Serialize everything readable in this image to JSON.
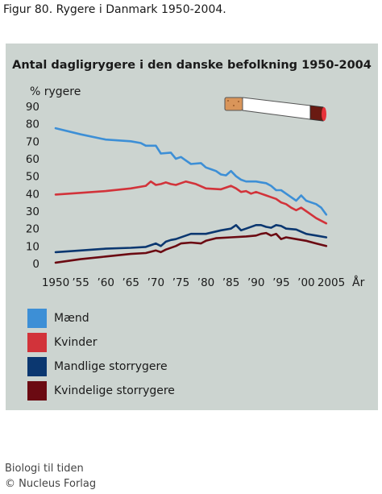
{
  "figure_caption": "Figur 80. Rygere i Danmark 1950-2004.",
  "footer": {
    "line1": "Biologi til tiden",
    "line2": "© Nucleus Forlag"
  },
  "colors": {
    "panel": "#ccd4d0",
    "maend": "#3d8fd6",
    "kvinder": "#d2333a",
    "mandlige": "#0b3770",
    "kvindelige": "#6b0a12"
  },
  "icon": "cigarette-icon",
  "chart_data": {
    "type": "line",
    "title": "Antal dagligrygere i den danske befolkning 1950-2004",
    "ylabel": "% rygere",
    "xlabel": "År",
    "ylim": [
      0,
      90
    ],
    "xlim": [
      1950,
      2005
    ],
    "grid": false,
    "legend": "bottom",
    "yticks": [
      "0",
      "10",
      "20",
      "30",
      "40",
      "50",
      "60",
      "70",
      "80",
      "90"
    ],
    "xticks": [
      {
        "value": 1950,
        "label": "1950"
      },
      {
        "value": 1955,
        "label": "’55"
      },
      {
        "value": 1960,
        "label": "’60"
      },
      {
        "value": 1965,
        "label": "’65"
      },
      {
        "value": 1970,
        "label": "’70"
      },
      {
        "value": 1975,
        "label": "’75"
      },
      {
        "value": 1980,
        "label": "’80"
      },
      {
        "value": 1985,
        "label": "’85"
      },
      {
        "value": 1990,
        "label": "’90"
      },
      {
        "value": 1995,
        "label": "’95"
      },
      {
        "value": 2000,
        "label": "’00"
      },
      {
        "value": 2005,
        "label": "2005"
      }
    ],
    "series": [
      {
        "name": "Mænd",
        "color": "#3d8fd6",
        "points": [
          [
            1950,
            77.5
          ],
          [
            1955,
            74
          ],
          [
            1960,
            71
          ],
          [
            1965,
            70
          ],
          [
            1967,
            69
          ],
          [
            1968,
            67.5
          ],
          [
            1970,
            67.5
          ],
          [
            1971,
            63
          ],
          [
            1973,
            63.5
          ],
          [
            1974,
            60
          ],
          [
            1975,
            61
          ],
          [
            1976,
            59
          ],
          [
            1977,
            57
          ],
          [
            1979,
            57.5
          ],
          [
            1980,
            55
          ],
          [
            1981,
            54
          ],
          [
            1982,
            53
          ],
          [
            1983,
            51
          ],
          [
            1984,
            50.5
          ],
          [
            1985,
            53
          ],
          [
            1986,
            50
          ],
          [
            1987,
            48
          ],
          [
            1988,
            47
          ],
          [
            1990,
            47
          ],
          [
            1991,
            46.5
          ],
          [
            1992,
            46
          ],
          [
            1993,
            44.5
          ],
          [
            1994,
            42
          ],
          [
            1995,
            42
          ],
          [
            1996,
            40
          ],
          [
            1997,
            38
          ],
          [
            1998,
            36
          ],
          [
            1999,
            39
          ],
          [
            2000,
            36
          ],
          [
            2001,
            35
          ],
          [
            2002,
            34
          ],
          [
            2003,
            32
          ],
          [
            2004,
            28
          ]
        ]
      },
      {
        "name": "Kvinder",
        "color": "#d2333a",
        "points": [
          [
            1950,
            39.5
          ],
          [
            1955,
            40.5
          ],
          [
            1960,
            41.5
          ],
          [
            1965,
            43
          ],
          [
            1968,
            44.5
          ],
          [
            1969,
            47
          ],
          [
            1970,
            45
          ],
          [
            1971,
            45.5
          ],
          [
            1972,
            46.5
          ],
          [
            1973,
            45.5
          ],
          [
            1974,
            45
          ],
          [
            1975,
            46
          ],
          [
            1976,
            47
          ],
          [
            1978,
            45.5
          ],
          [
            1980,
            43
          ],
          [
            1983,
            42.5
          ],
          [
            1985,
            44.5
          ],
          [
            1986,
            43
          ],
          [
            1987,
            41
          ],
          [
            1988,
            41.5
          ],
          [
            1989,
            40
          ],
          [
            1990,
            41
          ],
          [
            1991,
            40
          ],
          [
            1992,
            39
          ],
          [
            1993,
            38
          ],
          [
            1994,
            37
          ],
          [
            1995,
            35
          ],
          [
            1996,
            34
          ],
          [
            1997,
            32
          ],
          [
            1998,
            30.5
          ],
          [
            1999,
            32
          ],
          [
            2000,
            30
          ],
          [
            2001,
            28
          ],
          [
            2002,
            26
          ],
          [
            2004,
            23
          ]
        ]
      },
      {
        "name": "Mandlige storrygere",
        "color": "#0b3770",
        "points": [
          [
            1950,
            6.5
          ],
          [
            1955,
            7.5
          ],
          [
            1960,
            8.5
          ],
          [
            1965,
            9
          ],
          [
            1968,
            9.5
          ],
          [
            1970,
            11.5
          ],
          [
            1971,
            10
          ],
          [
            1972,
            12.5
          ],
          [
            1973,
            13.5
          ],
          [
            1974,
            14
          ],
          [
            1976,
            16
          ],
          [
            1977,
            17
          ],
          [
            1980,
            17
          ],
          [
            1983,
            19
          ],
          [
            1985,
            20
          ],
          [
            1986,
            22
          ],
          [
            1987,
            19
          ],
          [
            1988,
            20
          ],
          [
            1990,
            22
          ],
          [
            1991,
            22
          ],
          [
            1992,
            21
          ],
          [
            1993,
            20.5
          ],
          [
            1994,
            22
          ],
          [
            1995,
            21.5
          ],
          [
            1996,
            20
          ],
          [
            1998,
            19.5
          ],
          [
            2000,
            17
          ],
          [
            2002,
            16
          ],
          [
            2004,
            15
          ]
        ]
      },
      {
        "name": "Kvindelige storrygere",
        "color": "#6b0a12",
        "points": [
          [
            1950,
            0.5
          ],
          [
            1955,
            2.5
          ],
          [
            1960,
            4
          ],
          [
            1965,
            5.5
          ],
          [
            1968,
            6
          ],
          [
            1970,
            7.5
          ],
          [
            1971,
            6.5
          ],
          [
            1972,
            8
          ],
          [
            1974,
            10
          ],
          [
            1975,
            11.5
          ],
          [
            1977,
            12
          ],
          [
            1979,
            11.5
          ],
          [
            1980,
            13
          ],
          [
            1982,
            14.5
          ],
          [
            1985,
            15
          ],
          [
            1988,
            15.5
          ],
          [
            1990,
            16
          ],
          [
            1991,
            17
          ],
          [
            1992,
            17.5
          ],
          [
            1993,
            16
          ],
          [
            1994,
            17
          ],
          [
            1995,
            14
          ],
          [
            1996,
            15
          ],
          [
            1998,
            14
          ],
          [
            2000,
            13
          ],
          [
            2002,
            11.5
          ],
          [
            2004,
            10
          ]
        ]
      }
    ]
  }
}
